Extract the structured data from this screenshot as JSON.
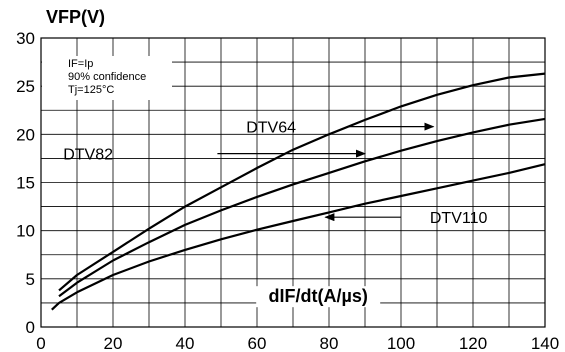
{
  "chart_data": {
    "type": "line",
    "ylabel": "VFP(V)",
    "xlabel": "dIF/dt(A/µs)",
    "xlim": [
      0,
      140
    ],
    "ylim": [
      0,
      30
    ],
    "x_ticks": [
      0,
      20,
      40,
      60,
      80,
      100,
      120,
      140
    ],
    "y_ticks": [
      0,
      5,
      10,
      15,
      20,
      25,
      30
    ],
    "grid": true,
    "annotations": [
      "IF=Ip",
      "90% confidence",
      "Tj=125°C"
    ],
    "series": [
      {
        "name": "DTV64",
        "x": [
          5,
          10,
          20,
          30,
          40,
          50,
          60,
          70,
          80,
          90,
          100,
          110,
          120,
          130,
          140
        ],
        "y": [
          3.8,
          5.4,
          7.8,
          10.2,
          12.5,
          14.5,
          16.5,
          18.4,
          20.0,
          21.5,
          22.9,
          24.1,
          25.1,
          25.9,
          26.3
        ]
      },
      {
        "name": "DTV82",
        "x": [
          5,
          10,
          20,
          30,
          40,
          50,
          60,
          70,
          80,
          90,
          100,
          110,
          120,
          130,
          140
        ],
        "y": [
          3.2,
          4.6,
          6.9,
          8.8,
          10.6,
          12.1,
          13.5,
          14.8,
          16.0,
          17.2,
          18.3,
          19.3,
          20.2,
          21.0,
          21.6
        ]
      },
      {
        "name": "DTV110",
        "x": [
          3,
          5,
          10,
          20,
          30,
          40,
          50,
          60,
          70,
          80,
          90,
          100,
          110,
          120,
          130,
          140
        ],
        "y": [
          1.8,
          2.5,
          3.6,
          5.4,
          6.8,
          8.0,
          9.1,
          10.1,
          11.0,
          11.9,
          12.8,
          13.6,
          14.4,
          15.2,
          16.0,
          16.9
        ]
      }
    ]
  }
}
